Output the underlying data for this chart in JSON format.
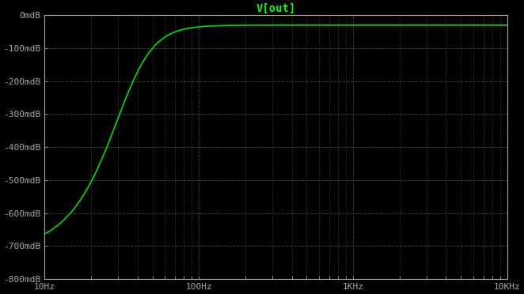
{
  "title": "V[out]",
  "title_color": "#00ff00",
  "background_color": "#000000",
  "plot_area_color": "#000000",
  "line_color": "#00dd00",
  "line_width": 1.2,
  "xmin": 10,
  "xmax": 10000,
  "ymin": -800,
  "ymax": 0,
  "yticks": [
    0,
    -100,
    -200,
    -300,
    -400,
    -500,
    -600,
    -700,
    -800
  ],
  "ytick_labels": [
    "0mdB",
    "-100mdB",
    "-200mdB",
    "-300mdB",
    "-400mdB",
    "-500mdB",
    "-600mdB",
    "-700mdB",
    "-800mdB"
  ],
  "xtick_positions": [
    10,
    100,
    1000,
    10000
  ],
  "xtick_labels": [
    "10Hz",
    "100Hz",
    "1KHz",
    "10KHz"
  ],
  "grid_color": "#2a4a2a",
  "grid_linestyle": "--",
  "grid_linewidth": 0.7,
  "text_color": "#aaaaaa",
  "tick_color": "#aaaaaa",
  "spine_color": "#aaaaaa",
  "title_fontsize": 10,
  "tick_fontsize": 8,
  "figwidth": 6.62,
  "figheight": 3.72,
  "curve_f0": 35,
  "curve_n_poles": 2.0,
  "curve_high_val": -30,
  "curve_low_val": -720
}
